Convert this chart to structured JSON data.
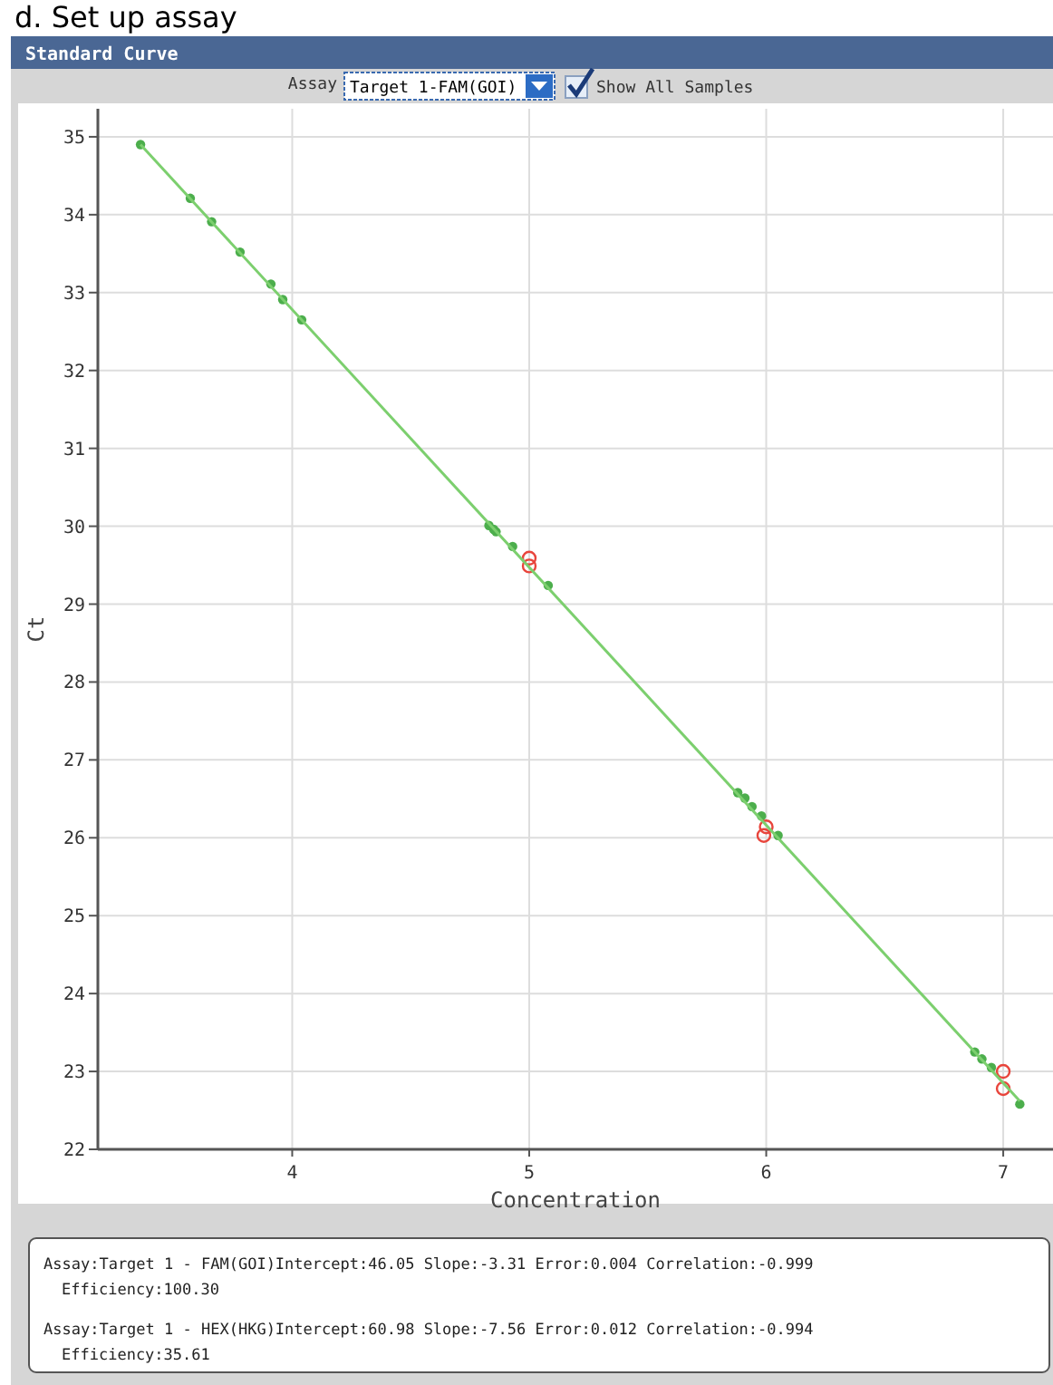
{
  "chart_data": {
    "type": "scatter",
    "title": "d. Set up assay",
    "subtitle": "Standard Curve",
    "xlabel": "Concentration",
    "ylabel": "Ct",
    "xlim": [
      3.18,
      7.21
    ],
    "xticks": [
      4,
      5,
      6,
      7
    ],
    "ylim": [
      22,
      35.36
    ],
    "yticks": [
      22,
      23,
      24,
      25,
      26,
      27,
      28,
      29,
      30,
      31,
      32,
      33,
      34,
      35
    ],
    "grid": true,
    "marker": "circle",
    "series": [
      {
        "color": "#4cae4c",
        "x": [
          3.36,
          3.57,
          3.66,
          3.78,
          3.91,
          3.96,
          4.04,
          4.83,
          4.85,
          4.86,
          4.93,
          5.08,
          5.88,
          5.91,
          5.94,
          5.98,
          6.05,
          6.88,
          6.91,
          6.95,
          7.07
        ],
        "values": [
          34.9,
          34.21,
          33.91,
          33.52,
          33.11,
          32.91,
          32.65,
          30.01,
          29.96,
          29.93,
          29.74,
          29.24,
          26.58,
          26.51,
          26.4,
          26.28,
          26.03,
          23.25,
          23.16,
          23.05,
          22.58
        ]
      },
      {
        "color": "#e8453c",
        "x": [
          5.0,
          5.0,
          6.0,
          5.99,
          7.0,
          7.0
        ],
        "values": [
          29.59,
          29.49,
          26.14,
          26.03,
          23.0,
          22.78
        ]
      },
      {
        "type": "line",
        "marker": "none",
        "color": "#7ccf6e",
        "x": [
          3.36,
          7.07
        ],
        "values": [
          34.9,
          22.62
        ]
      }
    ],
    "annotations": [
      "Assay",
      "Target 1-FAM(GOI)",
      "Show All Samples",
      "Assay:Target 1 - FAM(GOI)Intercept:46.05  Slope:-3.31  Error:0.004  Correlation:-0.999",
      "Efficiency:100.30",
      "Assay:Target 1 - HEX(HKG)Intercept:60.98  Slope:-7.56  Error:0.012  Correlation:-0.994",
      "Efficiency:35.61"
    ]
  }
}
